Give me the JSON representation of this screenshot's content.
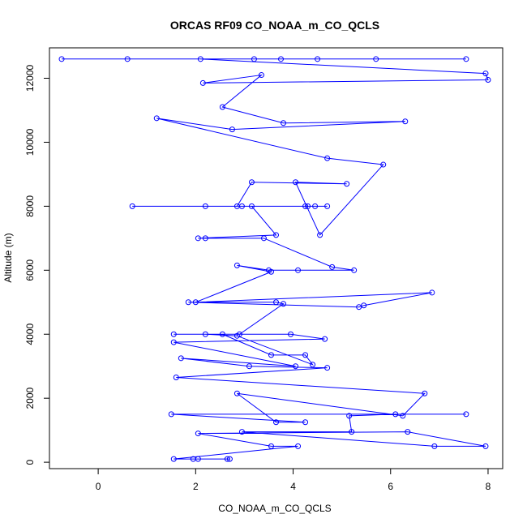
{
  "chart_data": {
    "type": "line",
    "title": "ORCAS RF09 CO_NOAA_m_CO_QCLS",
    "xlabel": "CO_NOAA_m_CO_QCLS",
    "ylabel": "Altitude (m)",
    "xlim": [
      -1.0,
      8.3
    ],
    "ylim": [
      -200,
      12950
    ],
    "xticks": [
      0,
      2,
      4,
      6,
      8
    ],
    "yticks": [
      0,
      2000,
      4000,
      6000,
      8000,
      10000,
      12000
    ],
    "grid": false,
    "line_color": "#0000ff",
    "marker": "open-circle",
    "series": [
      {
        "x": [
          2.65,
          2.7,
          1.95,
          2.05,
          1.55,
          4.1,
          3.55,
          2.05,
          6.35,
          7.95,
          6.9,
          2.95,
          5.2,
          5.15,
          6.1,
          7.55,
          1.5,
          4.25,
          3.65,
          2.85,
          6.25,
          6.7,
          1.6,
          4.7,
          3.1,
          1.7,
          4.05,
          1.55,
          4.65,
          3.95,
          2.55,
          3.55,
          4.25,
          4.4,
          2.85,
          2.2,
          1.55,
          2.9,
          3.8,
          3.65,
          1.85,
          5.35,
          5.45,
          6.85,
          2.0,
          3.55,
          2.85,
          3.5,
          4.1,
          5.25,
          4.8,
          3.4,
          2.2,
          2.05,
          3.65,
          3.15,
          4.25,
          0.7,
          2.95,
          4.3,
          4.45,
          4.7,
          2.2,
          2.85,
          3.15,
          5.1,
          4.05,
          4.55,
          5.85,
          4.7,
          1.2,
          2.75,
          6.3,
          3.8,
          2.55,
          3.35,
          2.15,
          8.0,
          7.95,
          2.1,
          7.55,
          0.6,
          4.5,
          -0.75,
          3.75,
          5.7,
          3.2
        ],
        "y": [
          100,
          100,
          100,
          100,
          100,
          500,
          500,
          900,
          950,
          500,
          500,
          950,
          950,
          1450,
          1500,
          1500,
          1500,
          1250,
          1250,
          2150,
          1450,
          2150,
          2650,
          2950,
          3000,
          3250,
          3000,
          3750,
          3850,
          4000,
          4000,
          3350,
          3350,
          3050,
          3950,
          4000,
          4000,
          4000,
          4950,
          5000,
          5000,
          4850,
          4900,
          5300,
          5000,
          5950,
          6150,
          6000,
          6000,
          6000,
          6100,
          7000,
          7000,
          7000,
          7100,
          8000,
          8000,
          8000,
          8000,
          8000,
          8000,
          8000,
          8000,
          8000,
          8750,
          8700,
          8750,
          7100,
          9300,
          9500,
          10750,
          10400,
          10650,
          10600,
          11100,
          12100,
          11850,
          11950,
          12150,
          12600,
          12600,
          12600,
          12600,
          12600,
          12600,
          12600,
          12600
        ]
      }
    ]
  }
}
